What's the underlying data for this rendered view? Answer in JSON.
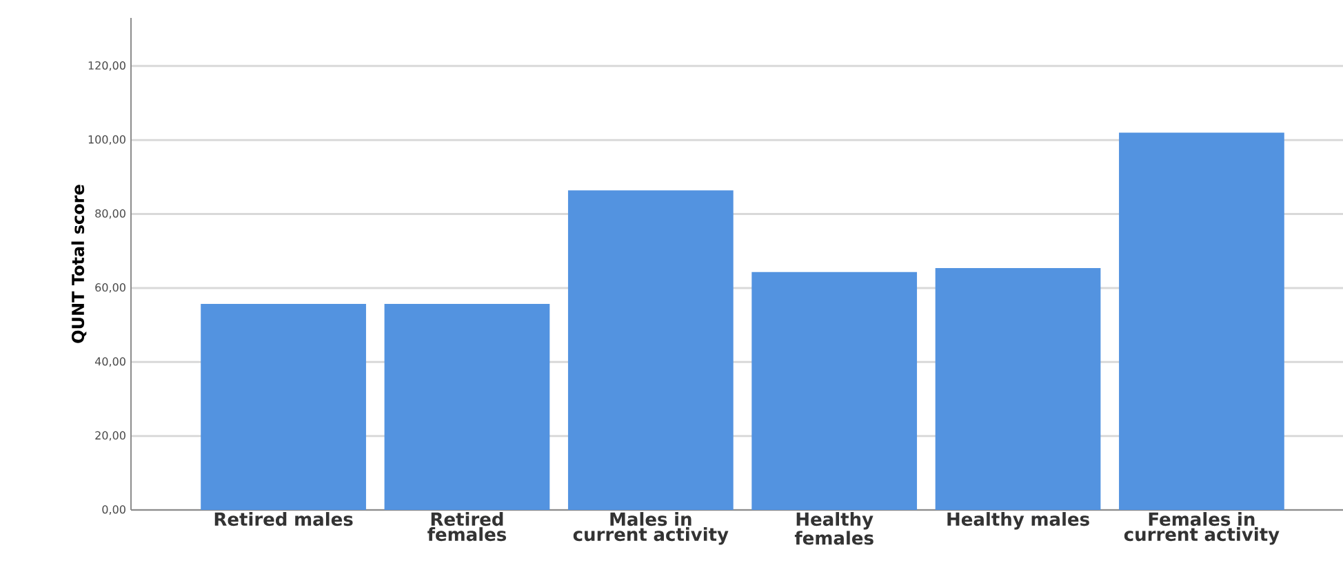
{
  "chart_data": {
    "type": "bar",
    "ylabel": "QUNT Total score",
    "categories": [
      "Retired males",
      "Retired females",
      "Males in current activity",
      "Healthy females",
      "Healthy males",
      "Females in current activity"
    ],
    "values": [
      55.7,
      55.7,
      86.4,
      64.3,
      65.4,
      102.0
    ],
    "color": "#5393e0",
    "ylim": [
      0,
      133
    ],
    "yticks": [
      {
        "value": 0,
        "label": "0,00"
      },
      {
        "value": 20,
        "label": "20,00"
      },
      {
        "value": 40,
        "label": "40,00"
      },
      {
        "value": 60,
        "label": "60,00"
      },
      {
        "value": 80,
        "label": "80,00"
      },
      {
        "value": 100,
        "label": "100,00"
      },
      {
        "value": 120,
        "label": "120,00"
      }
    ],
    "grid": "y"
  }
}
